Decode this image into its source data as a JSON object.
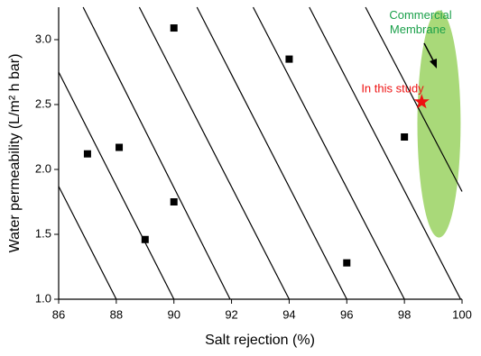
{
  "chart_data": {
    "type": "scatter",
    "x_label": "Salt rejection (%)",
    "y_label": "Water permeability (L/m² h bar)",
    "xlim": [
      86,
      100
    ],
    "ylim": [
      1.0,
      3.25
    ],
    "xticks": [
      86,
      88,
      90,
      92,
      94,
      96,
      98,
      100
    ],
    "yticks": [
      {
        "value": 1,
        "label": "1.0"
      },
      1.5,
      {
        "value": 2,
        "label": "2.0"
      },
      2.5,
      {
        "value": 3,
        "label": "3.0"
      }
    ],
    "series": [
      {
        "color": "#000000",
        "x": [
          87,
          88.1,
          89,
          90,
          90,
          94,
          96,
          98
        ],
        "values": [
          2.12,
          2.17,
          1.46,
          3.09,
          1.75,
          2.85,
          1.28,
          2.25
        ]
      }
    ],
    "tradeoff_lines": [
      [
        [
          86,
          1.87
        ],
        [
          88,
          1.0
        ]
      ],
      [
        [
          86,
          2.75
        ],
        [
          90,
          1.0
        ]
      ],
      [
        [
          86.85,
          3.25
        ],
        [
          91.95,
          1.0
        ]
      ],
      [
        [
          88.8,
          3.25
        ],
        [
          94,
          1.0
        ]
      ],
      [
        [
          90.8,
          3.25
        ],
        [
          96,
          1.0
        ]
      ],
      [
        [
          92.75,
          3.25
        ],
        [
          98,
          1.0
        ]
      ],
      [
        [
          94.7,
          3.25
        ],
        [
          99.95,
          1.0
        ]
      ],
      [
        [
          96.65,
          3.25
        ],
        [
          100,
          1.83
        ]
      ]
    ],
    "commercial_region": {
      "cx": 99.2,
      "cy": 2.35,
      "rx": 0.75,
      "ry": 0.875,
      "color": "#a9d979"
    },
    "commercial_label": "Commercial Membrane",
    "study_point": {
      "x": 98.6,
      "y": 2.52,
      "color": "#ee1111"
    },
    "study_label": "In this study"
  }
}
